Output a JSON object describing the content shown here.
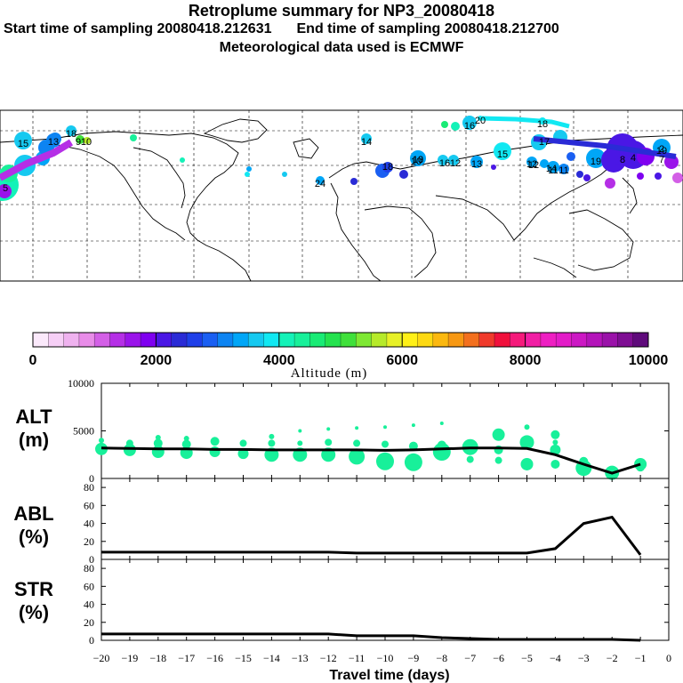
{
  "header": {
    "title": "Retroplume summary for NP3_20080418",
    "start_label": "Start time of sampling 20080418.212631",
    "end_label": "End time of sampling 20080418.212700",
    "met_label": "Meteorological data used is ECMWF"
  },
  "map": {
    "point_labels": [
      "15",
      "13",
      "18",
      "9",
      "10",
      "16",
      "20",
      "19",
      "18",
      "12",
      "17",
      "10",
      "15",
      "12",
      "14",
      "11",
      "19",
      "16",
      "18",
      "13",
      "7",
      "11",
      "14",
      "24",
      "13",
      "10",
      "12",
      "5",
      "8",
      "4",
      "2"
    ]
  },
  "colorbar": {
    "title": "Altitude (m)",
    "ticks": [
      "0",
      "2000",
      "4000",
      "6000",
      "8000",
      "10000"
    ],
    "colors": [
      "#fbe9fb",
      "#f6cff6",
      "#efb2ef",
      "#e88ce8",
      "#d35fe6",
      "#b52fe6",
      "#9a14ea",
      "#7f00f0",
      "#4a17e5",
      "#2a2bd6",
      "#1f3fe8",
      "#1a5ff2",
      "#0d84f2",
      "#00a6f7",
      "#16c9f0",
      "#11e8f2",
      "#14f2b8",
      "#18f09a",
      "#19eb75",
      "#24e24e",
      "#3fe03a",
      "#7ee833",
      "#b6ea2a",
      "#e7f027",
      "#fff017",
      "#fdd912",
      "#fbb80f",
      "#f79813",
      "#f3701e",
      "#f03a2b",
      "#f0103c",
      "#f51a7b",
      "#f11fa4",
      "#ee1fc2",
      "#e31cc8",
      "#cc18c4",
      "#b414ba",
      "#9a12a9",
      "#7e0e93",
      "#5f0a7b"
    ]
  },
  "chart_data": [
    {
      "type": "scatter",
      "name": "ALT",
      "ylabel": "ALT\n(m)",
      "ylabel_lines": [
        "ALT",
        "(m)"
      ],
      "xlim": [
        -20,
        0
      ],
      "ylim": [
        0,
        10000
      ],
      "yticks": [
        0,
        5000,
        10000
      ],
      "ytick_labels": [
        "0",
        "5000",
        "10000"
      ],
      "mean_line": {
        "x": [
          -20,
          -19,
          -18,
          -17,
          -16,
          -15,
          -14,
          -13,
          -12,
          -11,
          -10,
          -9,
          -8,
          -7,
          -6,
          -5,
          -4,
          -3,
          -2,
          -1
        ],
        "y": [
          3200,
          3150,
          3100,
          3100,
          3050,
          3050,
          3000,
          3000,
          3000,
          3000,
          2950,
          3000,
          3100,
          3200,
          3200,
          3150,
          2500,
          1500,
          550,
          1500
        ]
      },
      "points": [
        {
          "x": -20,
          "y": 3100,
          "s": 7
        },
        {
          "x": -20,
          "y": 4000,
          "s": 3
        },
        {
          "x": -19,
          "y": 3000,
          "s": 7
        },
        {
          "x": -19,
          "y": 3700,
          "s": 4
        },
        {
          "x": -18,
          "y": 2800,
          "s": 7
        },
        {
          "x": -18,
          "y": 3700,
          "s": 5
        },
        {
          "x": -18,
          "y": 4300,
          "s": 3
        },
        {
          "x": -17,
          "y": 2700,
          "s": 7
        },
        {
          "x": -17,
          "y": 3600,
          "s": 5
        },
        {
          "x": -17,
          "y": 4200,
          "s": 3
        },
        {
          "x": -16,
          "y": 2800,
          "s": 6
        },
        {
          "x": -16,
          "y": 3900,
          "s": 5
        },
        {
          "x": -15,
          "y": 2600,
          "s": 6
        },
        {
          "x": -15,
          "y": 3700,
          "s": 4
        },
        {
          "x": -14,
          "y": 2500,
          "s": 8
        },
        {
          "x": -14,
          "y": 3700,
          "s": 4
        },
        {
          "x": -14,
          "y": 4400,
          "s": 3
        },
        {
          "x": -13,
          "y": 2500,
          "s": 8
        },
        {
          "x": -13,
          "y": 3700,
          "s": 3
        },
        {
          "x": -13,
          "y": 5000,
          "s": 2
        },
        {
          "x": -12,
          "y": 2500,
          "s": 8
        },
        {
          "x": -12,
          "y": 3800,
          "s": 4
        },
        {
          "x": -12,
          "y": 5200,
          "s": 2
        },
        {
          "x": -11,
          "y": 2300,
          "s": 9
        },
        {
          "x": -11,
          "y": 3700,
          "s": 4
        },
        {
          "x": -11,
          "y": 5300,
          "s": 2
        },
        {
          "x": -10,
          "y": 1800,
          "s": 10
        },
        {
          "x": -10,
          "y": 3600,
          "s": 4
        },
        {
          "x": -10,
          "y": 5400,
          "s": 2
        },
        {
          "x": -9,
          "y": 1700,
          "s": 10
        },
        {
          "x": -9,
          "y": 3400,
          "s": 5
        },
        {
          "x": -9,
          "y": 5600,
          "s": 2
        },
        {
          "x": -8,
          "y": 2800,
          "s": 10
        },
        {
          "x": -8,
          "y": 3500,
          "s": 5
        },
        {
          "x": -8,
          "y": 5800,
          "s": 2
        },
        {
          "x": -7,
          "y": 3300,
          "s": 9
        },
        {
          "x": -7,
          "y": 2000,
          "s": 4
        },
        {
          "x": -6,
          "y": 4600,
          "s": 7
        },
        {
          "x": -6,
          "y": 3000,
          "s": 5
        },
        {
          "x": -6,
          "y": 1900,
          "s": 4
        },
        {
          "x": -5,
          "y": 3800,
          "s": 8
        },
        {
          "x": -5,
          "y": 1500,
          "s": 7
        },
        {
          "x": -5,
          "y": 5400,
          "s": 3
        },
        {
          "x": -4,
          "y": 3000,
          "s": 6
        },
        {
          "x": -4,
          "y": 4600,
          "s": 5
        },
        {
          "x": -4,
          "y": 1500,
          "s": 5
        },
        {
          "x": -4,
          "y": 3800,
          "s": 3
        },
        {
          "x": -3,
          "y": 1100,
          "s": 9
        },
        {
          "x": -3,
          "y": 1800,
          "s": 5
        },
        {
          "x": -2,
          "y": 600,
          "s": 8
        },
        {
          "x": -1,
          "y": 1500,
          "s": 7
        },
        {
          "x": -1,
          "y": 1200,
          "s": 5
        }
      ]
    },
    {
      "type": "line",
      "name": "ABL",
      "ylabel_lines": [
        "ABL",
        "(%)"
      ],
      "xlim": [
        -20,
        0
      ],
      "ylim": [
        0,
        90
      ],
      "yticks": [
        0,
        20,
        40,
        60,
        80
      ],
      "ytick_labels": [
        "0",
        "20",
        "40",
        "60",
        "80"
      ],
      "x": [
        -20,
        -19,
        -18,
        -17,
        -16,
        -15,
        -14,
        -13,
        -12,
        -11,
        -10,
        -9,
        -8,
        -7,
        -6,
        -5,
        -4,
        -3,
        -2,
        -1
      ],
      "y": [
        8,
        8,
        8,
        8,
        8,
        8,
        8,
        8,
        8,
        7,
        7,
        7,
        7,
        7,
        7,
        7,
        12,
        40,
        47,
        5
      ]
    },
    {
      "type": "line",
      "name": "STR",
      "ylabel_lines": [
        "STR",
        "(%)"
      ],
      "xlabel": "Travel time (days)",
      "xlim": [
        -20,
        0
      ],
      "ylim": [
        0,
        90
      ],
      "yticks": [
        0,
        20,
        40,
        60,
        80
      ],
      "ytick_labels": [
        "0",
        "20",
        "40",
        "60",
        "80"
      ],
      "xticks": [
        -20,
        -19,
        -18,
        -17,
        -16,
        -15,
        -14,
        -13,
        -12,
        -11,
        -10,
        -9,
        -8,
        -7,
        -6,
        -5,
        -4,
        -3,
        -2,
        -1,
        0
      ],
      "xtick_labels": [
        "−20",
        "−19",
        "−18",
        "−17",
        "−16",
        "−15",
        "−14",
        "−13",
        "−12",
        "−11",
        "−10",
        "−9",
        "−8",
        "−7",
        "−6",
        "−5",
        "−4",
        "−3",
        "−2",
        "−1",
        "0"
      ],
      "x": [
        -20,
        -19,
        -18,
        -17,
        -16,
        -15,
        -14,
        -13,
        -12,
        -11,
        -10,
        -9,
        -8,
        -7,
        -6,
        -5,
        -4,
        -3,
        -2,
        -1
      ],
      "y": [
        7,
        7,
        7,
        7,
        7,
        7,
        7,
        7,
        7,
        5,
        5,
        5,
        3,
        2,
        1,
        1,
        1,
        1,
        1,
        0
      ]
    }
  ]
}
